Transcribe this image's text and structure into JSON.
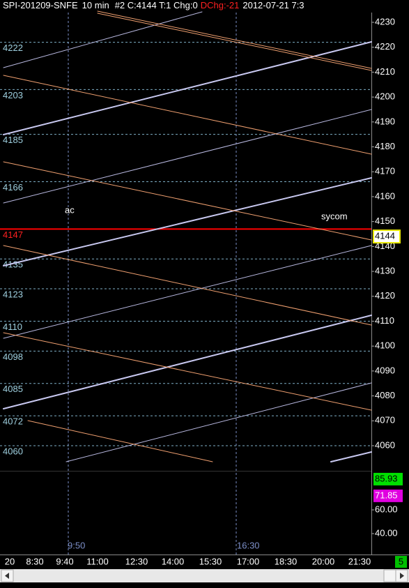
{
  "header": {
    "symbol": "SPI-201209-SNFE",
    "interval": "10 min",
    "info": "#2 C:4144 T:1 Chg:0",
    "dchg": "DChg:-21",
    "datetime": "2012-07-21 7:3"
  },
  "price_axis": {
    "ticks": [
      4230,
      4220,
      4210,
      4200,
      4190,
      4180,
      4170,
      4160,
      4150,
      4140,
      4130,
      4120,
      4110,
      4100,
      4090,
      4080,
      4070,
      4060
    ],
    "last": 4144
  },
  "levels": [
    4222,
    4203,
    4185,
    4166,
    4147,
    4135,
    4123,
    4110,
    4098,
    4085,
    4072,
    4060
  ],
  "highlight_level": 4147,
  "annotations": [
    "ac",
    "sycom"
  ],
  "session_marks": [
    "9:50",
    "16:30"
  ],
  "time_axis": [
    "20",
    "8:30",
    "9:40",
    "11:00",
    "12:30",
    "14:00",
    "15:30",
    "17:00",
    "18:30",
    "20:00",
    "21:30"
  ],
  "indicator": {
    "ticks": [
      {
        "value": 60,
        "label": "60.00"
      },
      {
        "value": 40,
        "label": "40.00"
      }
    ],
    "values": [
      85.93,
      71.85
    ]
  },
  "page_number": "5"
}
